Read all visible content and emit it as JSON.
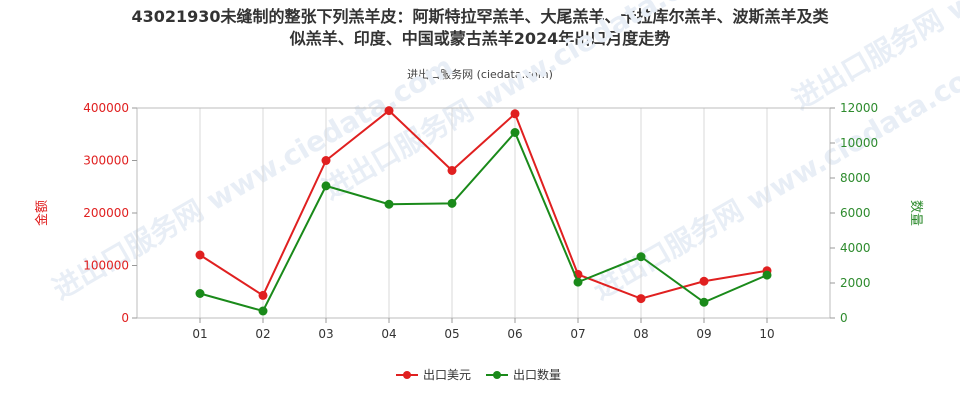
{
  "chart_data": {
    "type": "line",
    "title": "43021930未缝制的整张下列羔羊皮：阿斯特拉罕羔羊、大尾羔羊、卡拉库尔羔羊、波斯羔羊及类似羔羊、印度、中国或蒙古羔羊2024年出口月度走势",
    "subtitle": "进出口服务网 (ciedata.com)",
    "watermark": "进出口服务网 www.ciedata.com",
    "categories": [
      "01",
      "02",
      "03",
      "04",
      "05",
      "06",
      "07",
      "08",
      "09",
      "10"
    ],
    "left_axis": {
      "label": "金额",
      "ticks": [
        "0",
        "100000",
        "200000",
        "300000",
        "400000"
      ],
      "range": [
        0,
        400000
      ],
      "color": "#e02020"
    },
    "right_axis": {
      "label": "数量",
      "ticks": [
        "0",
        "2000",
        "4000",
        "6000",
        "8000",
        "10000",
        "12000"
      ],
      "range": [
        0,
        12000
      ],
      "color": "#2e8b2e"
    },
    "series": [
      {
        "name": "出口美元",
        "axis": "left",
        "color": "#e02020",
        "values": [
          120000,
          43000,
          300000,
          395000,
          281000,
          389000,
          83000,
          37000,
          70000,
          90000
        ]
      },
      {
        "name": "出口数量",
        "axis": "right",
        "color": "#1a8a1a",
        "values": [
          1400,
          400,
          7550,
          6500,
          6550,
          10600,
          2050,
          3500,
          900,
          2450
        ]
      }
    ],
    "grid": "vertical",
    "legend": "bottom-center"
  }
}
